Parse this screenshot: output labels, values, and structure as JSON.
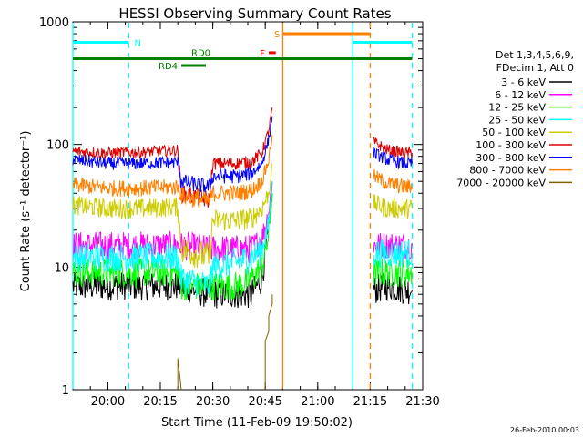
{
  "chart_data": {
    "type": "line",
    "title": "HESSI Observing Summary Count Rates",
    "xlabel": "Start Time (11-Feb-09 19:50:02)",
    "ylabel": "Count Rate (s⁻¹ detector⁻¹)",
    "y_scale": "log",
    "ylim": [
      1,
      1000
    ],
    "y_ticks": [
      1,
      10,
      100,
      1000
    ],
    "y_tick_labels": [
      "1",
      "10",
      "100",
      "1000"
    ],
    "xlim": [
      "19:50",
      "21:30"
    ],
    "x_ticks": [
      "20:00",
      "20:15",
      "20:30",
      "20:45",
      "21:00",
      "21:15",
      "21:30"
    ],
    "x_tick_labels": [
      "20:00",
      "20:15",
      "20:30",
      "20:45",
      "21:00",
      "21:15",
      "21:30"
    ],
    "timestamp": "26-Feb-2010 00:03",
    "legend": {
      "header": [
        "Det 1,3,4,5,6,9,",
        "FDecim 1, Att 0"
      ],
      "placement": "right"
    },
    "series": [
      {
        "name": "3 - 6 keV",
        "color": "#000000",
        "segments": [
          {
            "x": [
              "19:50",
              "20:00",
              "20:10",
              "20:20",
              "20:29",
              "20:37",
              "20:41",
              "20:44",
              "20:46",
              "20:47"
            ],
            "y": [
              7,
              7,
              7,
              7,
              6,
              6,
              6,
              8,
              20,
              40
            ]
          },
          {
            "x": [
              "21:16",
              "21:20",
              "21:25",
              "21:27"
            ],
            "y": [
              6.5,
              7,
              6.5,
              6.5
            ]
          }
        ]
      },
      {
        "name": "6 - 12 keV",
        "color": "#ff00ff",
        "segments": [
          {
            "x": [
              "19:50",
              "20:00",
              "20:10",
              "20:20",
              "20:29",
              "20:37",
              "20:41",
              "20:44",
              "20:46",
              "20:47"
            ],
            "y": [
              15,
              15,
              15,
              15,
              14,
              14,
              14,
              17,
              28,
              50
            ]
          },
          {
            "x": [
              "21:16",
              "21:20",
              "21:25",
              "21:27"
            ],
            "y": [
              15,
              15,
              15,
              15
            ]
          }
        ]
      },
      {
        "name": "12 - 25 keV",
        "color": "#00ff00",
        "segments": [
          {
            "x": [
              "19:50",
              "20:00",
              "20:10",
              "20:20",
              "20:21",
              "20:29",
              "20:30",
              "20:37",
              "20:41",
              "20:44",
              "20:46",
              "20:47"
            ],
            "y": [
              9,
              9,
              9,
              9,
              7,
              7,
              7,
              7,
              8,
              10,
              18,
              40
            ]
          },
          {
            "x": [
              "21:16",
              "21:20",
              "21:25",
              "21:27"
            ],
            "y": [
              9,
              9,
              9,
              9
            ]
          }
        ]
      },
      {
        "name": "25 - 50 keV",
        "color": "#00ffff",
        "segments": [
          {
            "x": [
              "19:50",
              "20:00",
              "20:10",
              "20:20",
              "20:21",
              "20:29",
              "20:30",
              "20:37",
              "20:41",
              "20:44",
              "20:46",
              "20:47"
            ],
            "y": [
              12,
              12,
              12,
              12,
              8,
              7,
              10,
              11,
              12,
              14,
              22,
              50
            ]
          },
          {
            "x": [
              "21:16",
              "21:20",
              "21:25",
              "21:27"
            ],
            "y": [
              13,
              13,
              13,
              13
            ]
          }
        ]
      },
      {
        "name": "50 - 100 keV",
        "color": "#cccc00",
        "segments": [
          {
            "x": [
              "19:50",
              "20:00",
              "20:10",
              "20:20",
              "20:21",
              "20:29",
              "20:30",
              "20:37",
              "20:41",
              "20:44",
              "20:46",
              "20:47"
            ],
            "y": [
              32,
              30,
              30,
              31,
              14,
              12,
              24,
              24,
              25,
              30,
              40,
              70
            ]
          },
          {
            "x": [
              "21:16",
              "21:20",
              "21:25",
              "21:27"
            ],
            "y": [
              33,
              30,
              30,
              30
            ]
          }
        ]
      },
      {
        "name": "100 - 300 keV",
        "color": "#dd0000",
        "segments": [
          {
            "x": [
              "19:50",
              "20:00",
              "20:10",
              "20:20",
              "20:21",
              "20:29",
              "20:30",
              "20:37",
              "20:41",
              "20:44",
              "20:46",
              "20:47"
            ],
            "y": [
              88,
              85,
              87,
              90,
              40,
              35,
              70,
              70,
              72,
              85,
              130,
              200
            ]
          },
          {
            "x": [
              "21:16",
              "21:20",
              "21:25",
              "21:27"
            ],
            "y": [
              105,
              90,
              85,
              85
            ]
          }
        ]
      },
      {
        "name": "300 - 800 keV",
        "color": "#0000ff",
        "segments": [
          {
            "x": [
              "19:50",
              "20:00",
              "20:10",
              "20:20",
              "20:21",
              "20:29",
              "20:30",
              "20:37",
              "20:41",
              "20:44",
              "20:46",
              "20:47"
            ],
            "y": [
              75,
              70,
              70,
              72,
              50,
              45,
              55,
              55,
              58,
              70,
              110,
              170
            ]
          },
          {
            "x": [
              "21:16",
              "21:20",
              "21:25",
              "21:27"
            ],
            "y": [
              85,
              75,
              70,
              70
            ]
          }
        ]
      },
      {
        "name": "800 - 7000 keV",
        "color": "#ff8000",
        "segments": [
          {
            "x": [
              "19:50",
              "20:00",
              "20:10",
              "20:20",
              "20:21",
              "20:29",
              "20:30",
              "20:37",
              "20:41",
              "20:44",
              "20:46",
              "20:47"
            ],
            "y": [
              47,
              44,
              44,
              45,
              38,
              34,
              40,
              40,
              42,
              50,
              75,
              120
            ]
          },
          {
            "x": [
              "21:16",
              "21:20",
              "21:25",
              "21:27"
            ],
            "y": [
              55,
              48,
              45,
              45
            ]
          }
        ]
      },
      {
        "name": "7000 - 20000 keV",
        "color": "#806000",
        "segments": [
          {
            "x": [
              "20:20",
              "20:20",
              "20:21"
            ],
            "y": [
              1,
              1.8,
              1
            ]
          },
          {
            "x": [
              "20:45",
              "20:45",
              "20:46",
              "20:46",
              "20:47",
              "20:47"
            ],
            "y": [
              1,
              2.5,
              3,
              4,
              5,
              6
            ]
          }
        ]
      }
    ],
    "state_bars": [
      {
        "label": "N",
        "color": "#00ffff",
        "level": 680,
        "intervals": [
          [
            "19:50",
            "20:06"
          ],
          [
            "21:10",
            "21:27"
          ]
        ]
      },
      {
        "label": "S",
        "color": "#ff8000",
        "level": 800,
        "intervals": [
          [
            "20:50",
            "21:15"
          ]
        ]
      },
      {
        "label": "F",
        "color": "#ff0000",
        "level": 560,
        "intervals": [
          [
            "20:46",
            "20:48"
          ]
        ]
      },
      {
        "label": "RD0",
        "color": "#008000",
        "level": 500,
        "intervals": [
          [
            "19:50",
            "21:27"
          ]
        ]
      },
      {
        "label": "RD4",
        "color": "#008000",
        "level": 440,
        "intervals": [
          [
            "20:21",
            "20:28"
          ]
        ]
      }
    ],
    "vertical_lines": [
      {
        "x": "19:50",
        "color": "#00ffff",
        "style": "solid"
      },
      {
        "x": "20:06",
        "color": "#00ffff",
        "style": "dashed"
      },
      {
        "x": "20:50",
        "color": "#ff8000",
        "style": "solid"
      },
      {
        "x": "21:10",
        "color": "#00ffff",
        "style": "solid"
      },
      {
        "x": "21:15",
        "color": "#ff8000",
        "style": "dashed"
      },
      {
        "x": "21:27",
        "color": "#00ffff",
        "style": "dashed"
      }
    ]
  }
}
